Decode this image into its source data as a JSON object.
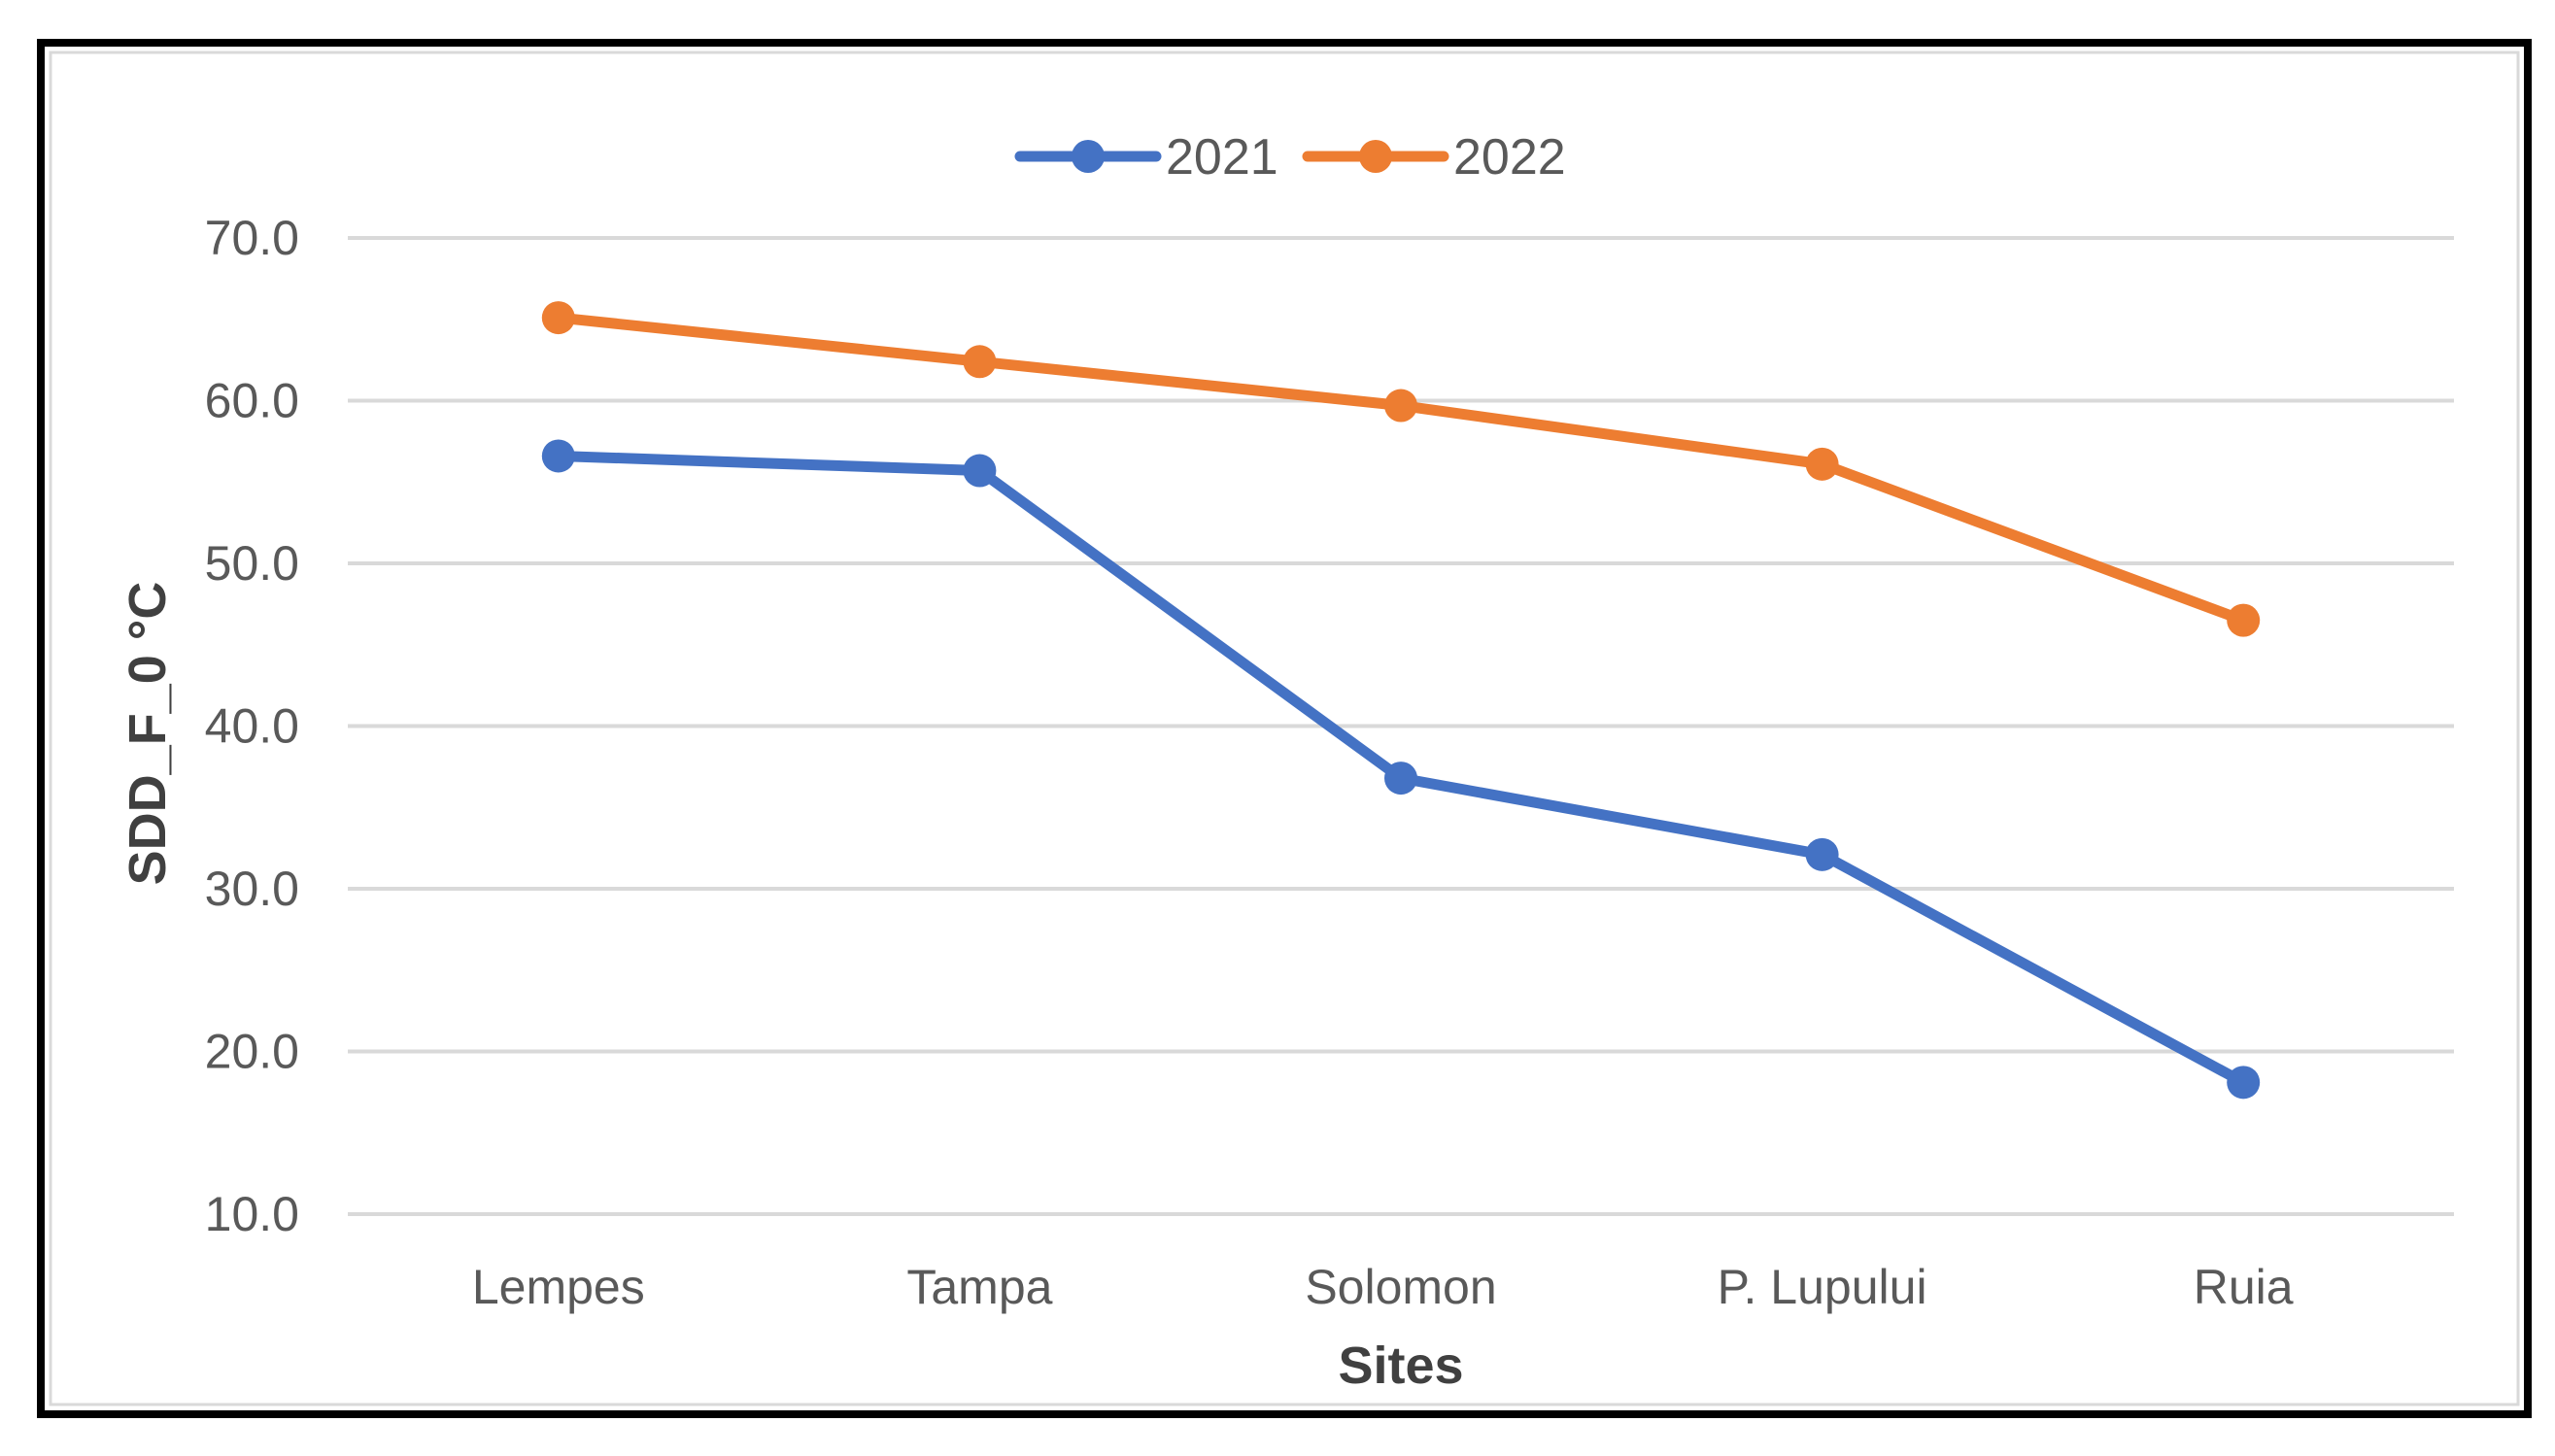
{
  "chart_data": {
    "type": "line",
    "title": "",
    "xlabel": "Sites",
    "ylabel": "SDD_F_0 °C",
    "categories": [
      "Lempes",
      "Tampa",
      "Solomon",
      "P. Lupului",
      "Ruia"
    ],
    "ylim": [
      10,
      70
    ],
    "yticks": [
      "10.0",
      "20.0",
      "30.0",
      "40.0",
      "50.0",
      "60.0",
      "70.0"
    ],
    "grid": true,
    "legend_position": "top-center",
    "series": [
      {
        "name": "2021",
        "color": "#4472C4",
        "values": [
          56.6,
          55.7,
          36.8,
          32.1,
          18.1
        ]
      },
      {
        "name": "2022",
        "color": "#ED7D31",
        "values": [
          65.1,
          62.4,
          59.7,
          56.1,
          46.5
        ]
      }
    ]
  }
}
